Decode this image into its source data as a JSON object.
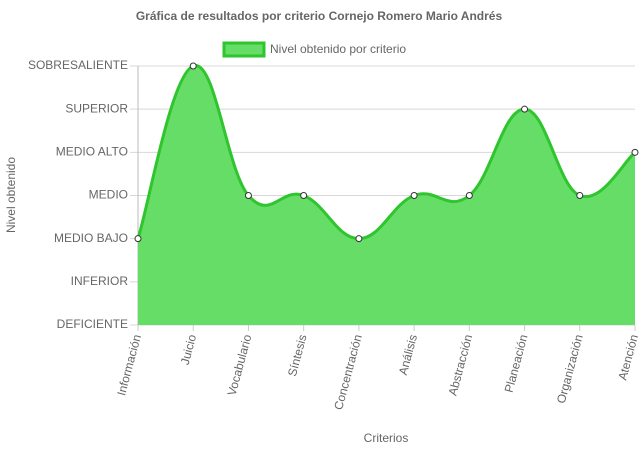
{
  "chart_data": {
    "type": "area",
    "title": "Gráfica de resultados por criterio Cornejo Romero Mario Andrés",
    "x_label": "Criterios",
    "y_label": "Nivel obtenido",
    "categories": [
      "Información",
      "Juicio",
      "Vocabulario",
      "Síntesis",
      "Concentración",
      "Análisis",
      "Abstracción",
      "Planeación",
      "Organización",
      "Atención"
    ],
    "series": [
      {
        "name": "Nivel obtenido por criterio",
        "color": "#2ec52e",
        "fill": "#66dd66",
        "values": [
          2,
          6,
          3,
          3,
          2,
          3,
          3,
          5,
          3,
          4
        ]
      }
    ],
    "ylim": [
      0,
      6
    ],
    "yticks": [
      {
        "value": 0,
        "label": "DEFICIENTE"
      },
      {
        "value": 1,
        "label": "INFERIOR"
      },
      {
        "value": 2,
        "label": "MEDIO BAJO"
      },
      {
        "value": 3,
        "label": "MEDIO"
      },
      {
        "value": 4,
        "label": "MEDIO ALTO"
      },
      {
        "value": 5,
        "label": "SUPERIOR"
      },
      {
        "value": 6,
        "label": "SOBRESALIENTE"
      }
    ],
    "grid": true,
    "legend": "top"
  }
}
